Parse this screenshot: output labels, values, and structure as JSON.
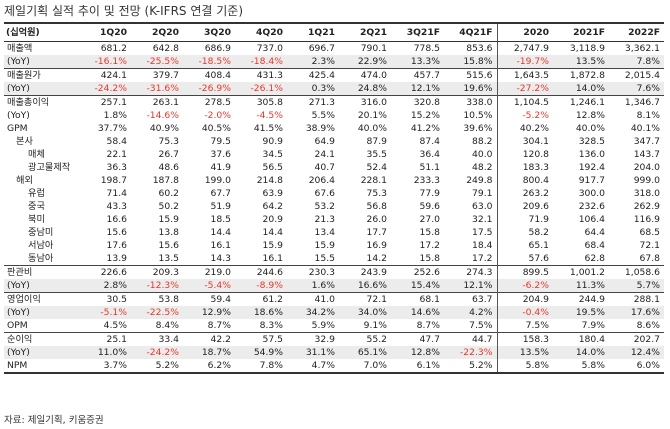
{
  "title": "제일기획 실적 추이 및 전망 (K-IFRS 연결 기준)",
  "unit_label": "(십억원)",
  "columns": [
    "1Q20",
    "2Q20",
    "3Q20",
    "4Q20",
    "1Q21",
    "2Q21",
    "3Q21F",
    "4Q21F",
    "2020",
    "2021F",
    "2022F"
  ],
  "rows": [
    {
      "label": "매출액",
      "indent": 0,
      "border": false,
      "yoy": false,
      "values": [
        "681.2",
        "642.8",
        "686.9",
        "737.0",
        "696.7",
        "790.1",
        "778.5",
        "853.6",
        "2,747.9",
        "3,118.9",
        "3,362.1"
      ]
    },
    {
      "label": "(YoY)",
      "indent": 0,
      "border": false,
      "yoy": true,
      "values": [
        "-16.1%",
        "-25.5%",
        "-18.5%",
        "-18.4%",
        "2.3%",
        "22.9%",
        "13.3%",
        "15.8%",
        "-19.7%",
        "13.5%",
        "7.8%"
      ]
    },
    {
      "label": "매출원가",
      "indent": 0,
      "border": true,
      "yoy": false,
      "values": [
        "424.1",
        "379.7",
        "408.4",
        "431.3",
        "425.4",
        "474.0",
        "457.7",
        "515.6",
        "1,643.5",
        "1,872.8",
        "2,015.4"
      ]
    },
    {
      "label": "(YoY)",
      "indent": 0,
      "border": false,
      "yoy": true,
      "values": [
        "-24.2%",
        "-31.6%",
        "-26.9%",
        "-26.1%",
        "0.3%",
        "24.8%",
        "12.1%",
        "19.6%",
        "-27.2%",
        "14.0%",
        "7.6%"
      ]
    },
    {
      "label": "매출총이익",
      "indent": 0,
      "border": true,
      "yoy": false,
      "values": [
        "257.1",
        "263.1",
        "278.5",
        "305.8",
        "271.3",
        "316.0",
        "320.8",
        "338.0",
        "1,104.5",
        "1,246.1",
        "1,346.7"
      ]
    },
    {
      "label": "(YoY)",
      "indent": 0,
      "border": false,
      "yoy": false,
      "values": [
        "1.8%",
        "-14.6%",
        "-2.0%",
        "-4.5%",
        "5.5%",
        "20.1%",
        "15.2%",
        "10.5%",
        "-5.2%",
        "12.8%",
        "8.1%"
      ]
    },
    {
      "label": "GPM",
      "indent": 0,
      "border": false,
      "yoy": false,
      "values": [
        "37.7%",
        "40.9%",
        "40.5%",
        "41.5%",
        "38.9%",
        "40.0%",
        "41.2%",
        "39.6%",
        "40.2%",
        "40.0%",
        "40.1%"
      ]
    },
    {
      "label": "본사",
      "indent": 1,
      "border": false,
      "yoy": false,
      "values": [
        "58.4",
        "75.3",
        "79.5",
        "90.9",
        "64.9",
        "87.9",
        "87.4",
        "88.2",
        "304.1",
        "328.5",
        "347.7"
      ]
    },
    {
      "label": "매체",
      "indent": 2,
      "border": false,
      "yoy": false,
      "values": [
        "22.1",
        "26.7",
        "37.6",
        "34.5",
        "24.1",
        "35.5",
        "36.4",
        "40.0",
        "120.8",
        "136.0",
        "143.7"
      ]
    },
    {
      "label": "광고물제작",
      "indent": 2,
      "border": false,
      "yoy": false,
      "values": [
        "36.3",
        "48.6",
        "41.9",
        "56.5",
        "40.7",
        "52.4",
        "51.1",
        "48.2",
        "183.3",
        "192.4",
        "204.0"
      ]
    },
    {
      "label": "해외",
      "indent": 1,
      "border": false,
      "yoy": false,
      "values": [
        "198.7",
        "187.8",
        "199.0",
        "214.8",
        "206.4",
        "228.1",
        "233.3",
        "249.8",
        "800.4",
        "917.7",
        "999.0"
      ]
    },
    {
      "label": "유럽",
      "indent": 2,
      "border": false,
      "yoy": false,
      "values": [
        "71.4",
        "60.2",
        "67.7",
        "63.9",
        "67.6",
        "75.3",
        "77.9",
        "79.1",
        "263.2",
        "300.0",
        "318.0"
      ]
    },
    {
      "label": "중국",
      "indent": 2,
      "border": false,
      "yoy": false,
      "values": [
        "43.3",
        "50.2",
        "51.9",
        "64.2",
        "53.2",
        "56.8",
        "59.6",
        "63.0",
        "209.6",
        "232.6",
        "262.9"
      ]
    },
    {
      "label": "북미",
      "indent": 2,
      "border": false,
      "yoy": false,
      "values": [
        "16.6",
        "15.9",
        "18.5",
        "20.9",
        "21.3",
        "26.0",
        "27.0",
        "32.1",
        "71.9",
        "106.4",
        "116.9"
      ]
    },
    {
      "label": "중남미",
      "indent": 2,
      "border": false,
      "yoy": false,
      "values": [
        "15.6",
        "13.8",
        "14.4",
        "14.4",
        "13.4",
        "17.7",
        "15.8",
        "17.5",
        "58.2",
        "64.4",
        "68.5"
      ]
    },
    {
      "label": "서남아",
      "indent": 2,
      "border": false,
      "yoy": false,
      "values": [
        "17.6",
        "15.6",
        "16.1",
        "15.9",
        "15.9",
        "16.9",
        "17.2",
        "18.4",
        "65.1",
        "68.4",
        "72.1"
      ]
    },
    {
      "label": "동남아",
      "indent": 2,
      "border": false,
      "yoy": false,
      "values": [
        "13.9",
        "13.5",
        "14.3",
        "16.1",
        "15.5",
        "14.2",
        "15.8",
        "17.2",
        "57.6",
        "62.8",
        "67.8"
      ]
    },
    {
      "label": "판관비",
      "indent": 0,
      "border": true,
      "yoy": false,
      "values": [
        "226.6",
        "209.3",
        "219.0",
        "244.6",
        "230.3",
        "243.9",
        "252.6",
        "274.3",
        "899.5",
        "1,001.2",
        "1,058.6"
      ]
    },
    {
      "label": "(YoY)",
      "indent": 0,
      "border": false,
      "yoy": true,
      "values": [
        "2.8%",
        "-12.3%",
        "-5.4%",
        "-8.9%",
        "1.6%",
        "16.6%",
        "15.4%",
        "12.1%",
        "-6.2%",
        "11.3%",
        "5.7%"
      ]
    },
    {
      "label": "영업이익",
      "indent": 0,
      "border": true,
      "yoy": false,
      "values": [
        "30.5",
        "53.8",
        "59.4",
        "61.2",
        "41.0",
        "72.1",
        "68.1",
        "63.7",
        "204.9",
        "244.9",
        "288.1"
      ]
    },
    {
      "label": "(YoY)",
      "indent": 0,
      "border": false,
      "yoy": true,
      "values": [
        "-5.1%",
        "-22.5%",
        "12.9%",
        "18.6%",
        "34.2%",
        "34.0%",
        "14.6%",
        "4.2%",
        "-0.4%",
        "19.5%",
        "17.6%"
      ]
    },
    {
      "label": "OPM",
      "indent": 0,
      "border": false,
      "yoy": false,
      "values": [
        "4.5%",
        "8.4%",
        "8.7%",
        "8.3%",
        "5.9%",
        "9.1%",
        "8.7%",
        "7.5%",
        "7.5%",
        "7.9%",
        "8.6%"
      ]
    },
    {
      "label": "순이익",
      "indent": 0,
      "border": true,
      "yoy": false,
      "values": [
        "25.1",
        "33.4",
        "42.2",
        "57.5",
        "32.9",
        "55.2",
        "47.7",
        "44.7",
        "158.3",
        "180.4",
        "202.7"
      ]
    },
    {
      "label": "(YoY)",
      "indent": 0,
      "border": false,
      "yoy": true,
      "values": [
        "11.0%",
        "-24.2%",
        "18.7%",
        "54.9%",
        "31.1%",
        "65.1%",
        "12.8%",
        "-22.3%",
        "13.5%",
        "14.0%",
        "12.4%"
      ]
    },
    {
      "label": "NPM",
      "indent": 0,
      "border": false,
      "yoy": false,
      "values": [
        "3.7%",
        "5.2%",
        "6.2%",
        "7.8%",
        "4.7%",
        "7.0%",
        "6.1%",
        "5.2%",
        "5.8%",
        "5.8%",
        "6.0%"
      ]
    }
  ],
  "source": "자료: 제일기획, 키움증권"
}
